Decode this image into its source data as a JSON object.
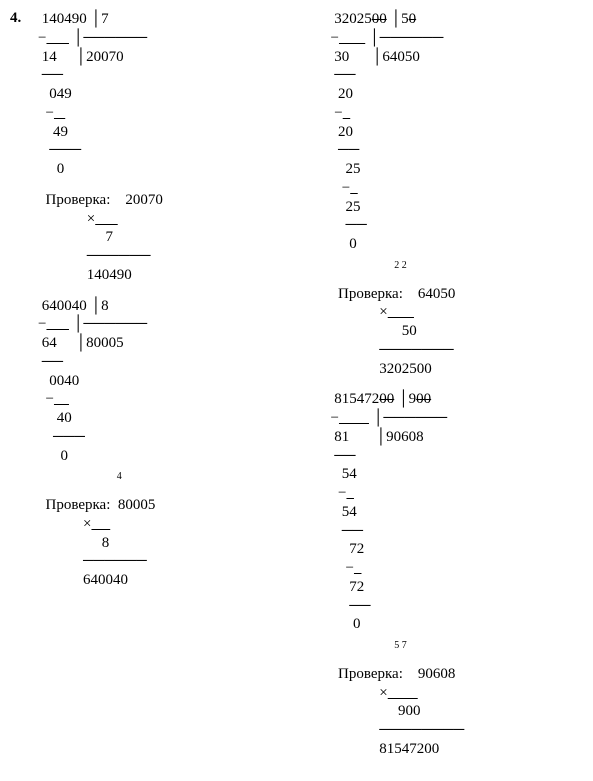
{
  "problem_number": "4.",
  "check_label": "Проверка:",
  "p1": {
    "dividend": "140490",
    "divisor": "7",
    "quotient": "20070",
    "d_lines": [
      "14",
      "049",
      "49",
      "0"
    ],
    "mult": {
      "a": "20070",
      "b": "7",
      "r": "140490"
    }
  },
  "p2": {
    "dividend_raw": "3202500",
    "dividend_disp": "32025",
    "dividend_cancel": "00",
    "divisor_raw": "50",
    "divisor_disp": "5",
    "divisor_cancel": "0",
    "quotient": "64050",
    "d_lines": [
      "30",
      "20",
      "20",
      "25",
      "25",
      "0"
    ],
    "mult": {
      "a": "64050",
      "b": "50",
      "r": "3202500",
      "carries": "2 2"
    }
  },
  "p3": {
    "dividend": "640040",
    "divisor": "8",
    "quotient": "80005",
    "d_lines": [
      "64",
      "0040",
      "40",
      "0"
    ],
    "mult": {
      "a": "80005",
      "b": "8",
      "r": "640040",
      "carries": "4"
    }
  },
  "p4": {
    "dividend_raw": "81547200",
    "dividend_disp": "815472",
    "dividend_cancel": "00",
    "divisor_raw": "900",
    "divisor_disp": "9",
    "divisor_cancel": "00",
    "quotient": "90608",
    "d_lines": [
      "81",
      "54",
      "54",
      "72",
      "72",
      "0"
    ],
    "mult": {
      "a": "90608",
      "b": "900",
      "r": "81547200",
      "carries": "5 7"
    }
  }
}
